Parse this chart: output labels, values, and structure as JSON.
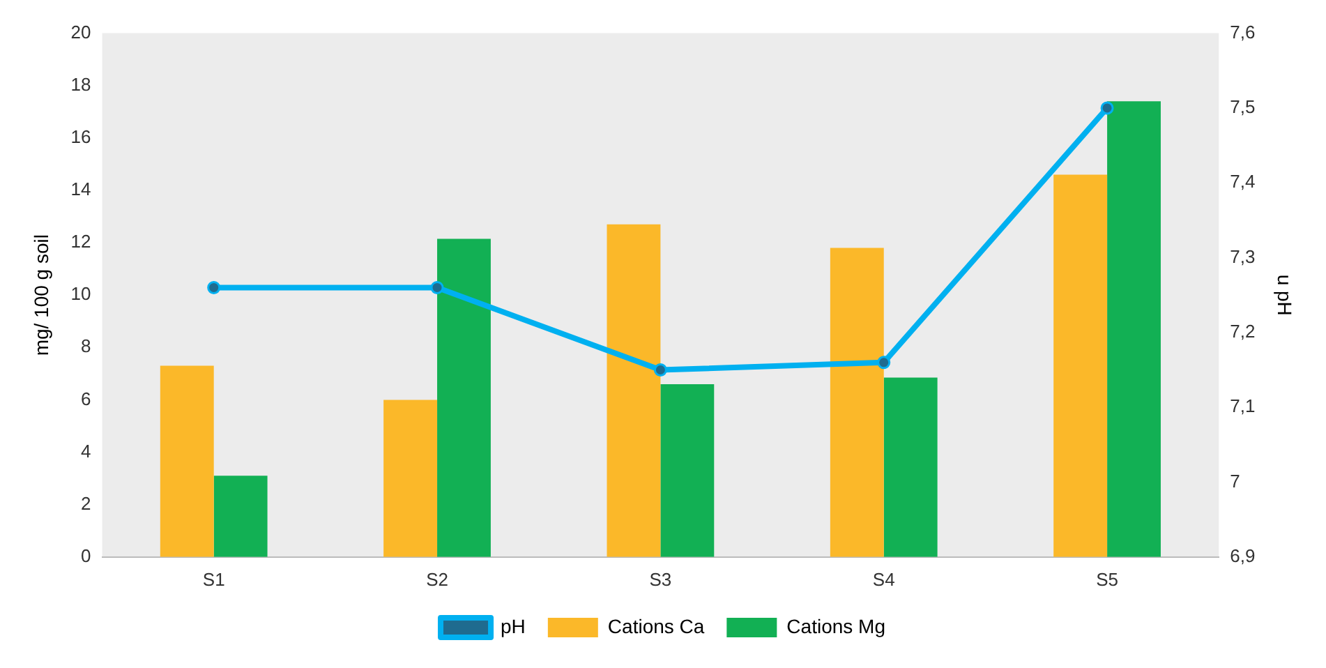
{
  "chart_data": {
    "type": "bar",
    "ylabel": "mg/ 100 g soil",
    "y2label": "u pH",
    "categories": [
      "S1",
      "S2",
      "S3",
      "S4",
      "S5"
    ],
    "series": [
      {
        "name": "Cations Ca",
        "color": "#fbb829",
        "values": [
          7.3,
          6.0,
          12.7,
          11.8,
          14.6
        ]
      },
      {
        "name": "Cations Mg",
        "color": "#12b054",
        "values": [
          3.1,
          12.15,
          6.6,
          6.85,
          17.4
        ]
      },
      {
        "name": "pH",
        "type": "line",
        "axis": "y2",
        "color": "#00b0f0",
        "marker": "circle",
        "values": [
          7.26,
          7.26,
          7.15,
          7.16,
          7.5
        ]
      }
    ],
    "ylim": [
      0,
      20
    ],
    "yticks": [
      0,
      2,
      4,
      6,
      8,
      10,
      12,
      14,
      16,
      18,
      20
    ],
    "y2lim": [
      6.9,
      7.6
    ],
    "y2ticks": [
      {
        "value": 6.9,
        "label": "6,9"
      },
      {
        "value": 7,
        "label": "7"
      },
      {
        "value": 7.1,
        "label": "7,1"
      },
      {
        "value": 7.2,
        "label": "7,2"
      },
      {
        "value": 7.3,
        "label": "7,3"
      },
      {
        "value": 7.4,
        "label": "7,4"
      },
      {
        "value": 7.5,
        "label": "7,5"
      },
      {
        "value": 7.6,
        "label": "7,6"
      }
    ],
    "grid": false,
    "legend": "bottom"
  }
}
